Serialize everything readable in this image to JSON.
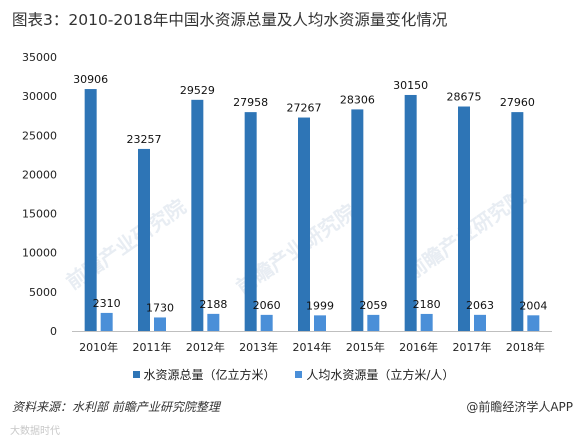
{
  "title": "图表3：2010-2018年中国水资源总量及人均水资源量变化情况",
  "chart_data": {
    "type": "bar",
    "categories": [
      "2010年",
      "2011年",
      "2012年",
      "2013年",
      "2014年",
      "2015年",
      "2016年",
      "2017年",
      "2018年"
    ],
    "series": [
      {
        "name": "水资源总量（亿立方米）",
        "values": [
          30906,
          23257,
          29529,
          27958,
          27267,
          28306,
          30150,
          28675,
          27960
        ],
        "color": "#2e75b6"
      },
      {
        "name": "人均水资源量（立方米/人）",
        "values": [
          2310,
          1730,
          2188,
          2060,
          1999,
          2059,
          2180,
          2063,
          2004
        ],
        "color": "#4a8fd8"
      }
    ],
    "yticks": [
      0,
      5000,
      10000,
      15000,
      20000,
      25000,
      30000,
      35000
    ],
    "ylim": [
      0,
      35000
    ],
    "grid": false,
    "legend_position": "bottom"
  },
  "source": "资料来源：水利部  前瞻产业研究院整理",
  "brand": "@前瞻经济学人APP",
  "watermark": "前瞻产业研究院",
  "footer_mark": "大数据时代"
}
